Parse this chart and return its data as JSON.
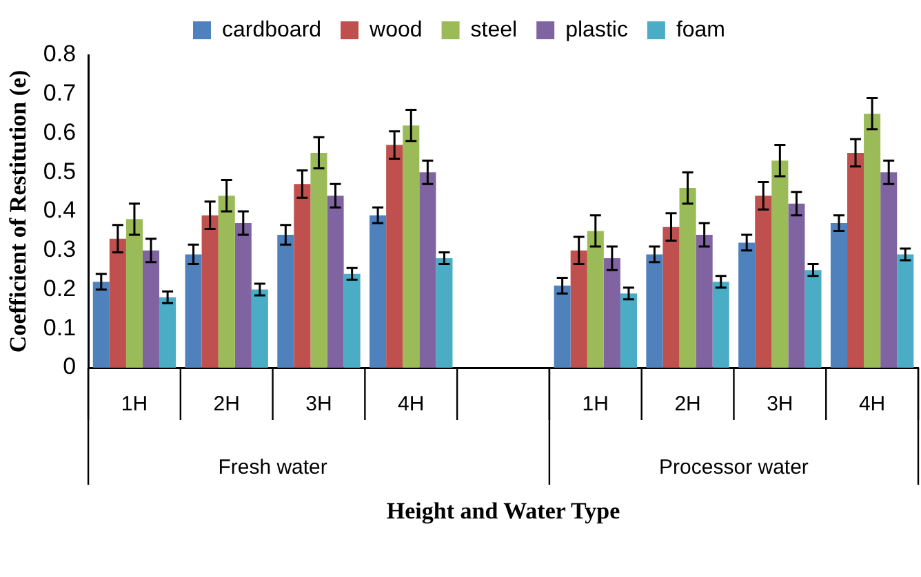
{
  "chart_data": {
    "type": "bar",
    "xlabel": "Height and Water Type",
    "ylabel": "Coefficient of Restitution (e)",
    "categories": [
      "1H",
      "2H",
      "3H",
      "4H",
      null,
      "1H",
      "2H",
      "3H",
      "4H"
    ],
    "series": [
      {
        "name": "cardboard",
        "color": "#4f81bd",
        "values": [
          0.22,
          0.29,
          0.34,
          0.39,
          null,
          0.21,
          0.29,
          0.32,
          0.37
        ],
        "errors": [
          0.02,
          0.025,
          0.025,
          0.02,
          null,
          0.02,
          0.02,
          0.02,
          0.02
        ]
      },
      {
        "name": "wood",
        "color": "#c0504d",
        "values": [
          0.33,
          0.39,
          0.47,
          0.57,
          null,
          0.3,
          0.36,
          0.44,
          0.55
        ],
        "errors": [
          0.035,
          0.035,
          0.035,
          0.035,
          null,
          0.035,
          0.035,
          0.035,
          0.035
        ]
      },
      {
        "name": "steel",
        "color": "#9bbb59",
        "values": [
          0.38,
          0.44,
          0.55,
          0.62,
          null,
          0.35,
          0.46,
          0.53,
          0.65
        ],
        "errors": [
          0.04,
          0.04,
          0.04,
          0.04,
          null,
          0.04,
          0.04,
          0.04,
          0.04
        ]
      },
      {
        "name": "plastic",
        "color": "#8064a2",
        "values": [
          0.3,
          0.37,
          0.44,
          0.5,
          null,
          0.28,
          0.34,
          0.42,
          0.5
        ],
        "errors": [
          0.03,
          0.03,
          0.03,
          0.03,
          null,
          0.03,
          0.03,
          0.03,
          0.03
        ]
      },
      {
        "name": "foam",
        "color": "#4bacc6",
        "values": [
          0.18,
          0.2,
          0.24,
          0.28,
          null,
          0.19,
          0.22,
          0.25,
          0.29
        ],
        "errors": [
          0.015,
          0.015,
          0.015,
          0.015,
          null,
          0.015,
          0.015,
          0.015,
          0.015
        ]
      }
    ],
    "annotations": [
      "Fresh water",
      "Processor water"
    ],
    "ylim": [
      0,
      0.8
    ],
    "yticks": [
      0,
      0.1,
      0.2,
      0.3,
      0.4,
      0.5,
      0.6,
      0.7,
      0.8
    ],
    "grid": false,
    "legend": "top"
  }
}
